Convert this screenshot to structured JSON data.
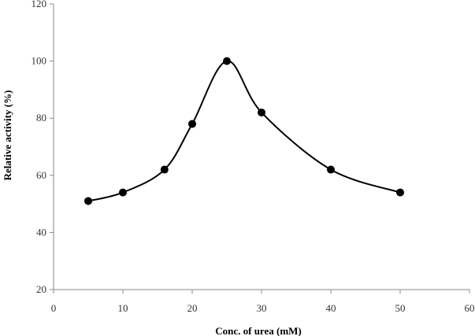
{
  "chart_data": {
    "type": "line",
    "smooth": true,
    "title": "",
    "xlabel": "Conc. of urea (mM)",
    "ylabel": "Relative activity (%)",
    "xlim": [
      0,
      60
    ],
    "ylim": [
      20,
      120
    ],
    "x_ticks": [
      0,
      10,
      20,
      30,
      40,
      50,
      60
    ],
    "y_ticks": [
      20,
      40,
      60,
      80,
      100,
      120
    ],
    "grid": false,
    "legend": "none",
    "series": [
      {
        "color": "#000000",
        "marker": "circle",
        "points": [
          {
            "x": 5,
            "y": 51
          },
          {
            "x": 10,
            "y": 54
          },
          {
            "x": 16,
            "y": 62
          },
          {
            "x": 20,
            "y": 78
          },
          {
            "x": 25,
            "y": 100
          },
          {
            "x": 30,
            "y": 82
          },
          {
            "x": 40,
            "y": 62
          },
          {
            "x": 50,
            "y": 54
          }
        ]
      }
    ]
  }
}
